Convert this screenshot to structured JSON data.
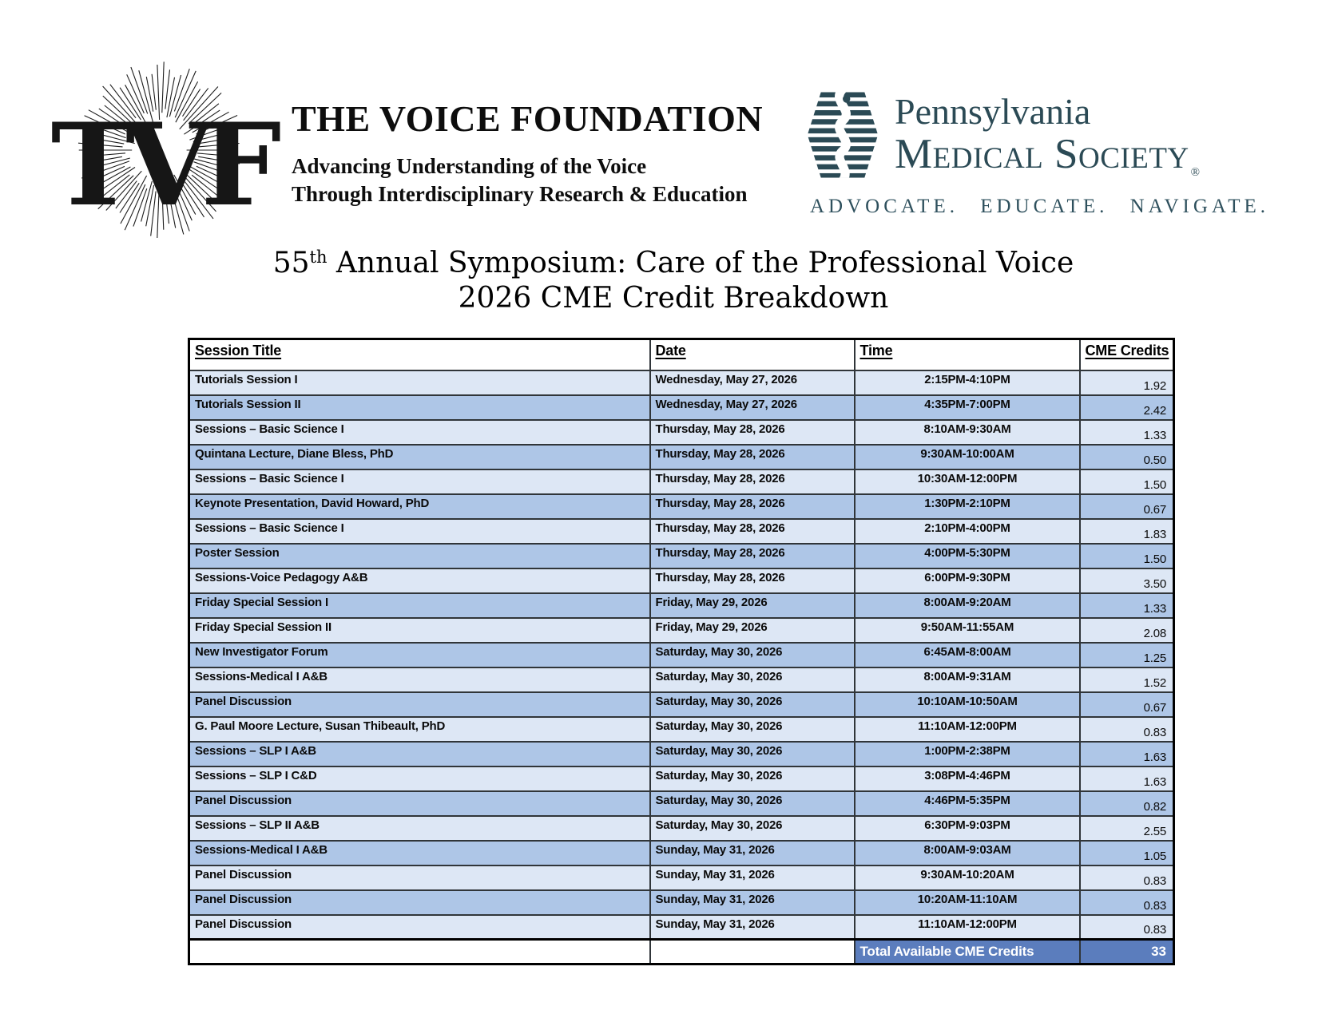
{
  "logos": {
    "voice_foundation": {
      "monogram": "TVF",
      "name": "THE VOICE FOUNDATION",
      "tagline_line1": "Advancing Understanding of the Voice",
      "tagline_line2": "Through Interdisciplinary Research & Education"
    },
    "pa_medical_society": {
      "line1": "Pennsylvania",
      "line2": "Medical Society",
      "registered_mark": "®",
      "tagline": "ADVOCATE. EDUCATE. NAVIGATE."
    }
  },
  "title": {
    "line1_number": "55",
    "line1_superscript": "th",
    "line1_text": " Annual Symposium: Care of the Professional Voice",
    "line2": "2026 CME Credit Breakdown"
  },
  "table": {
    "headers": [
      "Session Title",
      "Date",
      "Time",
      "CME Credits"
    ],
    "rows": [
      {
        "session": "Tutorials Session I",
        "date": "Wednesday, May 27, 2026",
        "time": "2:15PM-4:10PM",
        "credits": "1.92"
      },
      {
        "session": "Tutorials Session II",
        "date": "Wednesday, May 27, 2026",
        "time": "4:35PM-7:00PM",
        "credits": "2.42"
      },
      {
        "session": "Sessions – Basic Science I",
        "date": "Thursday, May 28, 2026",
        "time": "8:10AM-9:30AM",
        "credits": "1.33"
      },
      {
        "session": "Quintana Lecture, Diane Bless, PhD",
        "date": "Thursday, May 28, 2026",
        "time": "9:30AM-10:00AM",
        "credits": "0.50"
      },
      {
        "session": "Sessions – Basic Science I",
        "date": "Thursday, May 28, 2026",
        "time": "10:30AM-12:00PM",
        "credits": "1.50"
      },
      {
        "session": "Keynote Presentation, David Howard, PhD",
        "date": "Thursday, May 28, 2026",
        "time": "1:30PM-2:10PM",
        "credits": "0.67"
      },
      {
        "session": "Sessions – Basic Science I",
        "date": "Thursday, May 28, 2026",
        "time": "2:10PM-4:00PM",
        "credits": "1.83"
      },
      {
        "session": "Poster Session",
        "date": "Thursday, May 28, 2026",
        "time": "4:00PM-5:30PM",
        "credits": "1.50"
      },
      {
        "session": "Sessions-Voice Pedagogy A&B",
        "date": "Thursday, May 28, 2026",
        "time": "6:00PM-9:30PM",
        "credits": "3.50"
      },
      {
        "session": "Friday Special Session I",
        "date": "Friday, May 29, 2026",
        "time": "8:00AM-9:20AM",
        "credits": "1.33"
      },
      {
        "session": "Friday Special Session II",
        "date": "Friday, May 29, 2026",
        "time": "9:50AM-11:55AM",
        "credits": "2.08"
      },
      {
        "session": "New Investigator Forum",
        "date": "Saturday, May 30, 2026",
        "time": "6:45AM-8:00AM",
        "credits": "1.25"
      },
      {
        "session": "Sessions-Medical I A&B",
        "date": "Saturday, May 30, 2026",
        "time": "8:00AM-9:31AM",
        "credits": "1.52"
      },
      {
        "session": "Panel Discussion",
        "date": "Saturday, May 30, 2026",
        "time": "10:10AM-10:50AM",
        "credits": "0.67"
      },
      {
        "session": "G. Paul Moore Lecture, Susan Thibeault, PhD",
        "date": "Saturday, May 30, 2026",
        "time": "11:10AM-12:00PM",
        "credits": "0.83"
      },
      {
        "session": "Sessions – SLP I A&B",
        "date": "Saturday, May 30, 2026",
        "time": "1:00PM-2:38PM",
        "credits": "1.63"
      },
      {
        "session": "Sessions – SLP I C&D",
        "date": "Saturday, May 30, 2026",
        "time": "3:08PM-4:46PM",
        "credits": "1.63"
      },
      {
        "session": "Panel Discussion",
        "date": "Saturday, May 30, 2026",
        "time": "4:46PM-5:35PM",
        "credits": "0.82"
      },
      {
        "session": "Sessions – SLP II A&B",
        "date": "Saturday, May 30, 2026",
        "time": "6:30PM-9:03PM",
        "credits": "2.55"
      },
      {
        "session": "Sessions-Medical I A&B",
        "date": "Sunday, May 31, 2026",
        "time": "8:00AM-9:03AM",
        "credits": "1.05"
      },
      {
        "session": "Panel Discussion",
        "date": "Sunday, May 31, 2026",
        "time": "9:30AM-10:20AM",
        "credits": "0.83"
      },
      {
        "session": "Panel Discussion",
        "date": "Sunday, May 31, 2026",
        "time": "10:20AM-11:10AM",
        "credits": "0.83"
      },
      {
        "session": "Panel Discussion",
        "date": "Sunday, May 31, 2026",
        "time": "11:10AM-12:00PM",
        "credits": "0.83"
      }
    ],
    "total_label": "Total Available CME Credits",
    "total_value": "33"
  },
  "colors": {
    "row_light": "#dde7f5",
    "row_medium": "#aec6e7",
    "total_row_bg": "#5b7dbd",
    "pamed_brand": "#2b4a55",
    "table_border": "#000000"
  }
}
